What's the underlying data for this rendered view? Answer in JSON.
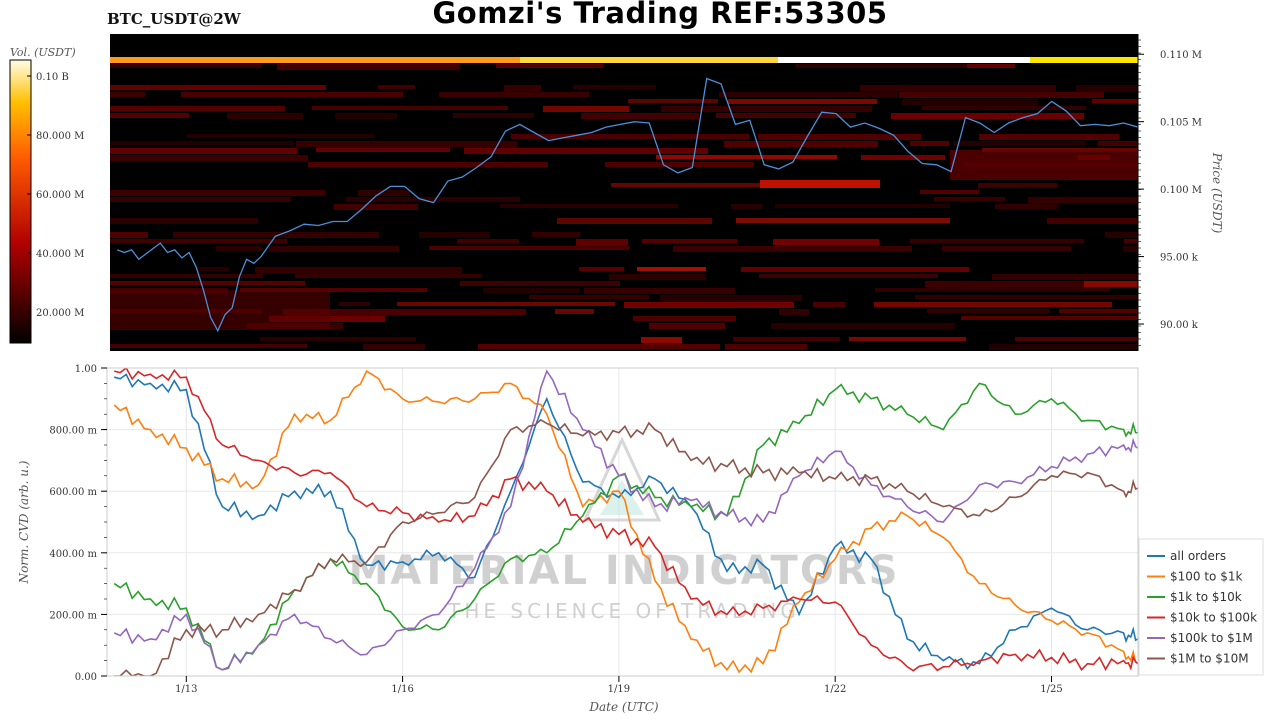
{
  "header": {
    "title": "Gomzi's Trading REF:53305",
    "symbol": "BTC_USDT@2W"
  },
  "colors": {
    "heatmap_background": "#000000",
    "price_line": "#4a90d9",
    "grid": "#e8e8e8"
  },
  "watermark": {
    "brand": "MATERIAL INDICATORS",
    "tagline": "THE SCIENCE OF TRADING",
    "color": "#bdbdbd"
  },
  "chart_data": [
    {
      "type": "heatmap",
      "name": "orderbook-heatmap",
      "colorbar": {
        "label": "Vol. (USDT)",
        "tick_labels": [
          "0.10 B",
          "80.000 M",
          "60.000 M",
          "40.000 M",
          "20.000 M"
        ],
        "range": [
          0,
          110000000
        ],
        "colormap": "hot"
      },
      "y_axis": {
        "label": "Price (USDT)",
        "tick_labels": [
          "0.110 M",
          "0.105 M",
          "0.100 M",
          "95.00 k",
          "90.00 k"
        ],
        "ylim": [
          88000,
          111500
        ]
      },
      "grid": false,
      "price_series": {
        "name": "price",
        "x": [
          0.0,
          0.1,
          0.2,
          0.3,
          0.4,
          0.5,
          0.6,
          0.7,
          0.8,
          0.9,
          1.0,
          1.1,
          1.2,
          1.3,
          1.4,
          1.5,
          1.6,
          1.7,
          1.8,
          1.9,
          2.0,
          2.2,
          2.4,
          2.6,
          2.8,
          3.0,
          3.2,
          3.4,
          3.6,
          3.8,
          4.0,
          4.2,
          4.4,
          4.6,
          4.8,
          5.0,
          5.2,
          5.4,
          5.6,
          5.8,
          6.0,
          6.2,
          6.4,
          6.6,
          6.8,
          7.0,
          7.2,
          7.4,
          7.6,
          7.8,
          8.0,
          8.2,
          8.4,
          8.6,
          8.8,
          9.0,
          9.2,
          9.4,
          9.6,
          9.8,
          10.0,
          10.2,
          10.4,
          10.6,
          10.8,
          11.0,
          11.2,
          11.4,
          11.6,
          11.8,
          12.0,
          12.2,
          12.4,
          12.6,
          12.8,
          13.0,
          13.2,
          13.4,
          13.6,
          13.8,
          14.0,
          14.2
        ],
        "y": [
          95500,
          95300,
          95500,
          94800,
          95200,
          95600,
          96000,
          95300,
          95500,
          94900,
          95300,
          94200,
          92500,
          90500,
          89500,
          90700,
          91200,
          93500,
          94800,
          94500,
          95000,
          96500,
          96900,
          97400,
          97300,
          97600,
          97600,
          98500,
          99500,
          100200,
          100200,
          99300,
          99000,
          100600,
          100900,
          101600,
          102400,
          104300,
          104800,
          104200,
          103600,
          103800,
          104000,
          104200,
          104600,
          104800,
          105000,
          104900,
          101800,
          101200,
          101600,
          108200,
          107800,
          104800,
          105100,
          101800,
          101500,
          102000,
          103900,
          105700,
          105600,
          104600,
          104900,
          104500,
          104000,
          102800,
          101900,
          101800,
          101300,
          105300,
          104900,
          104200,
          104900,
          105300,
          105600,
          106500,
          105800,
          104700,
          104800,
          104700,
          104900,
          104600
        ]
      }
    },
    {
      "type": "line",
      "name": "normalized-cvd",
      "xlabel": "Date (UTC)",
      "ylabel": "Norm. CVD (arb. u.)",
      "xlim": [
        -0.1,
        14.2
      ],
      "ylim": [
        0,
        1
      ],
      "x_tick_labels": [
        "1/13",
        "1/16",
        "1/19",
        "1/22",
        "1/25"
      ],
      "x_tick_values": [
        1,
        4,
        7,
        10,
        13
      ],
      "y_tick_labels": [
        "0.00",
        "200.00 m",
        "400.00 m",
        "600.00 m",
        "800.00 m",
        "1.00"
      ],
      "y_tick_values": [
        0,
        0.2,
        0.4,
        0.6,
        0.8,
        1.0
      ],
      "grid": true,
      "legend": "right",
      "x": [
        0.0,
        0.5,
        1.0,
        1.5,
        2.0,
        2.5,
        3.0,
        3.5,
        4.0,
        4.5,
        5.0,
        5.5,
        6.0,
        6.5,
        7.0,
        7.5,
        8.0,
        8.5,
        9.0,
        9.5,
        10.0,
        10.5,
        11.0,
        11.5,
        12.0,
        12.5,
        13.0,
        13.5,
        14.0,
        14.2
      ],
      "series": [
        {
          "name": "all orders",
          "color": "#1f77b4",
          "values": [
            0.97,
            0.95,
            0.93,
            0.55,
            0.52,
            0.6,
            0.6,
            0.36,
            0.37,
            0.4,
            0.32,
            0.6,
            0.9,
            0.63,
            0.58,
            0.64,
            0.55,
            0.34,
            0.36,
            0.2,
            0.42,
            0.38,
            0.12,
            0.05,
            0.04,
            0.15,
            0.22,
            0.15,
            0.14,
            0.12
          ]
        },
        {
          "name": "$100 to $1k",
          "color": "#ff7f0e",
          "values": [
            0.88,
            0.8,
            0.74,
            0.64,
            0.62,
            0.85,
            0.83,
            0.99,
            0.9,
            0.89,
            0.9,
            0.95,
            0.85,
            0.55,
            0.6,
            0.31,
            0.12,
            0.02,
            0.04,
            0.24,
            0.38,
            0.48,
            0.52,
            0.45,
            0.3,
            0.23,
            0.18,
            0.14,
            0.08,
            0.04
          ]
        },
        {
          "name": "$1k to $10k",
          "color": "#2ca02c",
          "values": [
            0.3,
            0.25,
            0.22,
            0.02,
            0.1,
            0.28,
            0.38,
            0.3,
            0.16,
            0.15,
            0.25,
            0.38,
            0.4,
            0.52,
            0.65,
            0.58,
            0.55,
            0.52,
            0.75,
            0.82,
            0.93,
            0.9,
            0.85,
            0.8,
            0.95,
            0.85,
            0.9,
            0.83,
            0.8,
            0.79
          ]
        },
        {
          "name": "$10k to $100k",
          "color": "#d62728",
          "values": [
            0.99,
            0.98,
            0.97,
            0.75,
            0.7,
            0.66,
            0.66,
            0.55,
            0.53,
            0.5,
            0.52,
            0.64,
            0.6,
            0.5,
            0.46,
            0.42,
            0.25,
            0.2,
            0.22,
            0.25,
            0.24,
            0.1,
            0.03,
            0.03,
            0.05,
            0.07,
            0.06,
            0.04,
            0.05,
            0.04
          ]
        },
        {
          "name": "$100k to $1M",
          "color": "#9467bd",
          "values": [
            0.14,
            0.12,
            0.2,
            0.02,
            0.1,
            0.2,
            0.12,
            0.07,
            0.15,
            0.2,
            0.35,
            0.55,
            0.99,
            0.8,
            0.65,
            0.55,
            0.57,
            0.52,
            0.5,
            0.65,
            0.73,
            0.62,
            0.55,
            0.5,
            0.62,
            0.63,
            0.68,
            0.72,
            0.75,
            0.74
          ]
        },
        {
          "name": "$1M to $10M",
          "color": "#8c564b",
          "values": [
            0.0,
            0.0,
            0.15,
            0.15,
            0.2,
            0.28,
            0.38,
            0.37,
            0.5,
            0.53,
            0.58,
            0.8,
            0.82,
            0.78,
            0.79,
            0.8,
            0.7,
            0.68,
            0.66,
            0.66,
            0.64,
            0.64,
            0.6,
            0.55,
            0.52,
            0.58,
            0.65,
            0.66,
            0.6,
            0.61
          ]
        }
      ]
    }
  ]
}
